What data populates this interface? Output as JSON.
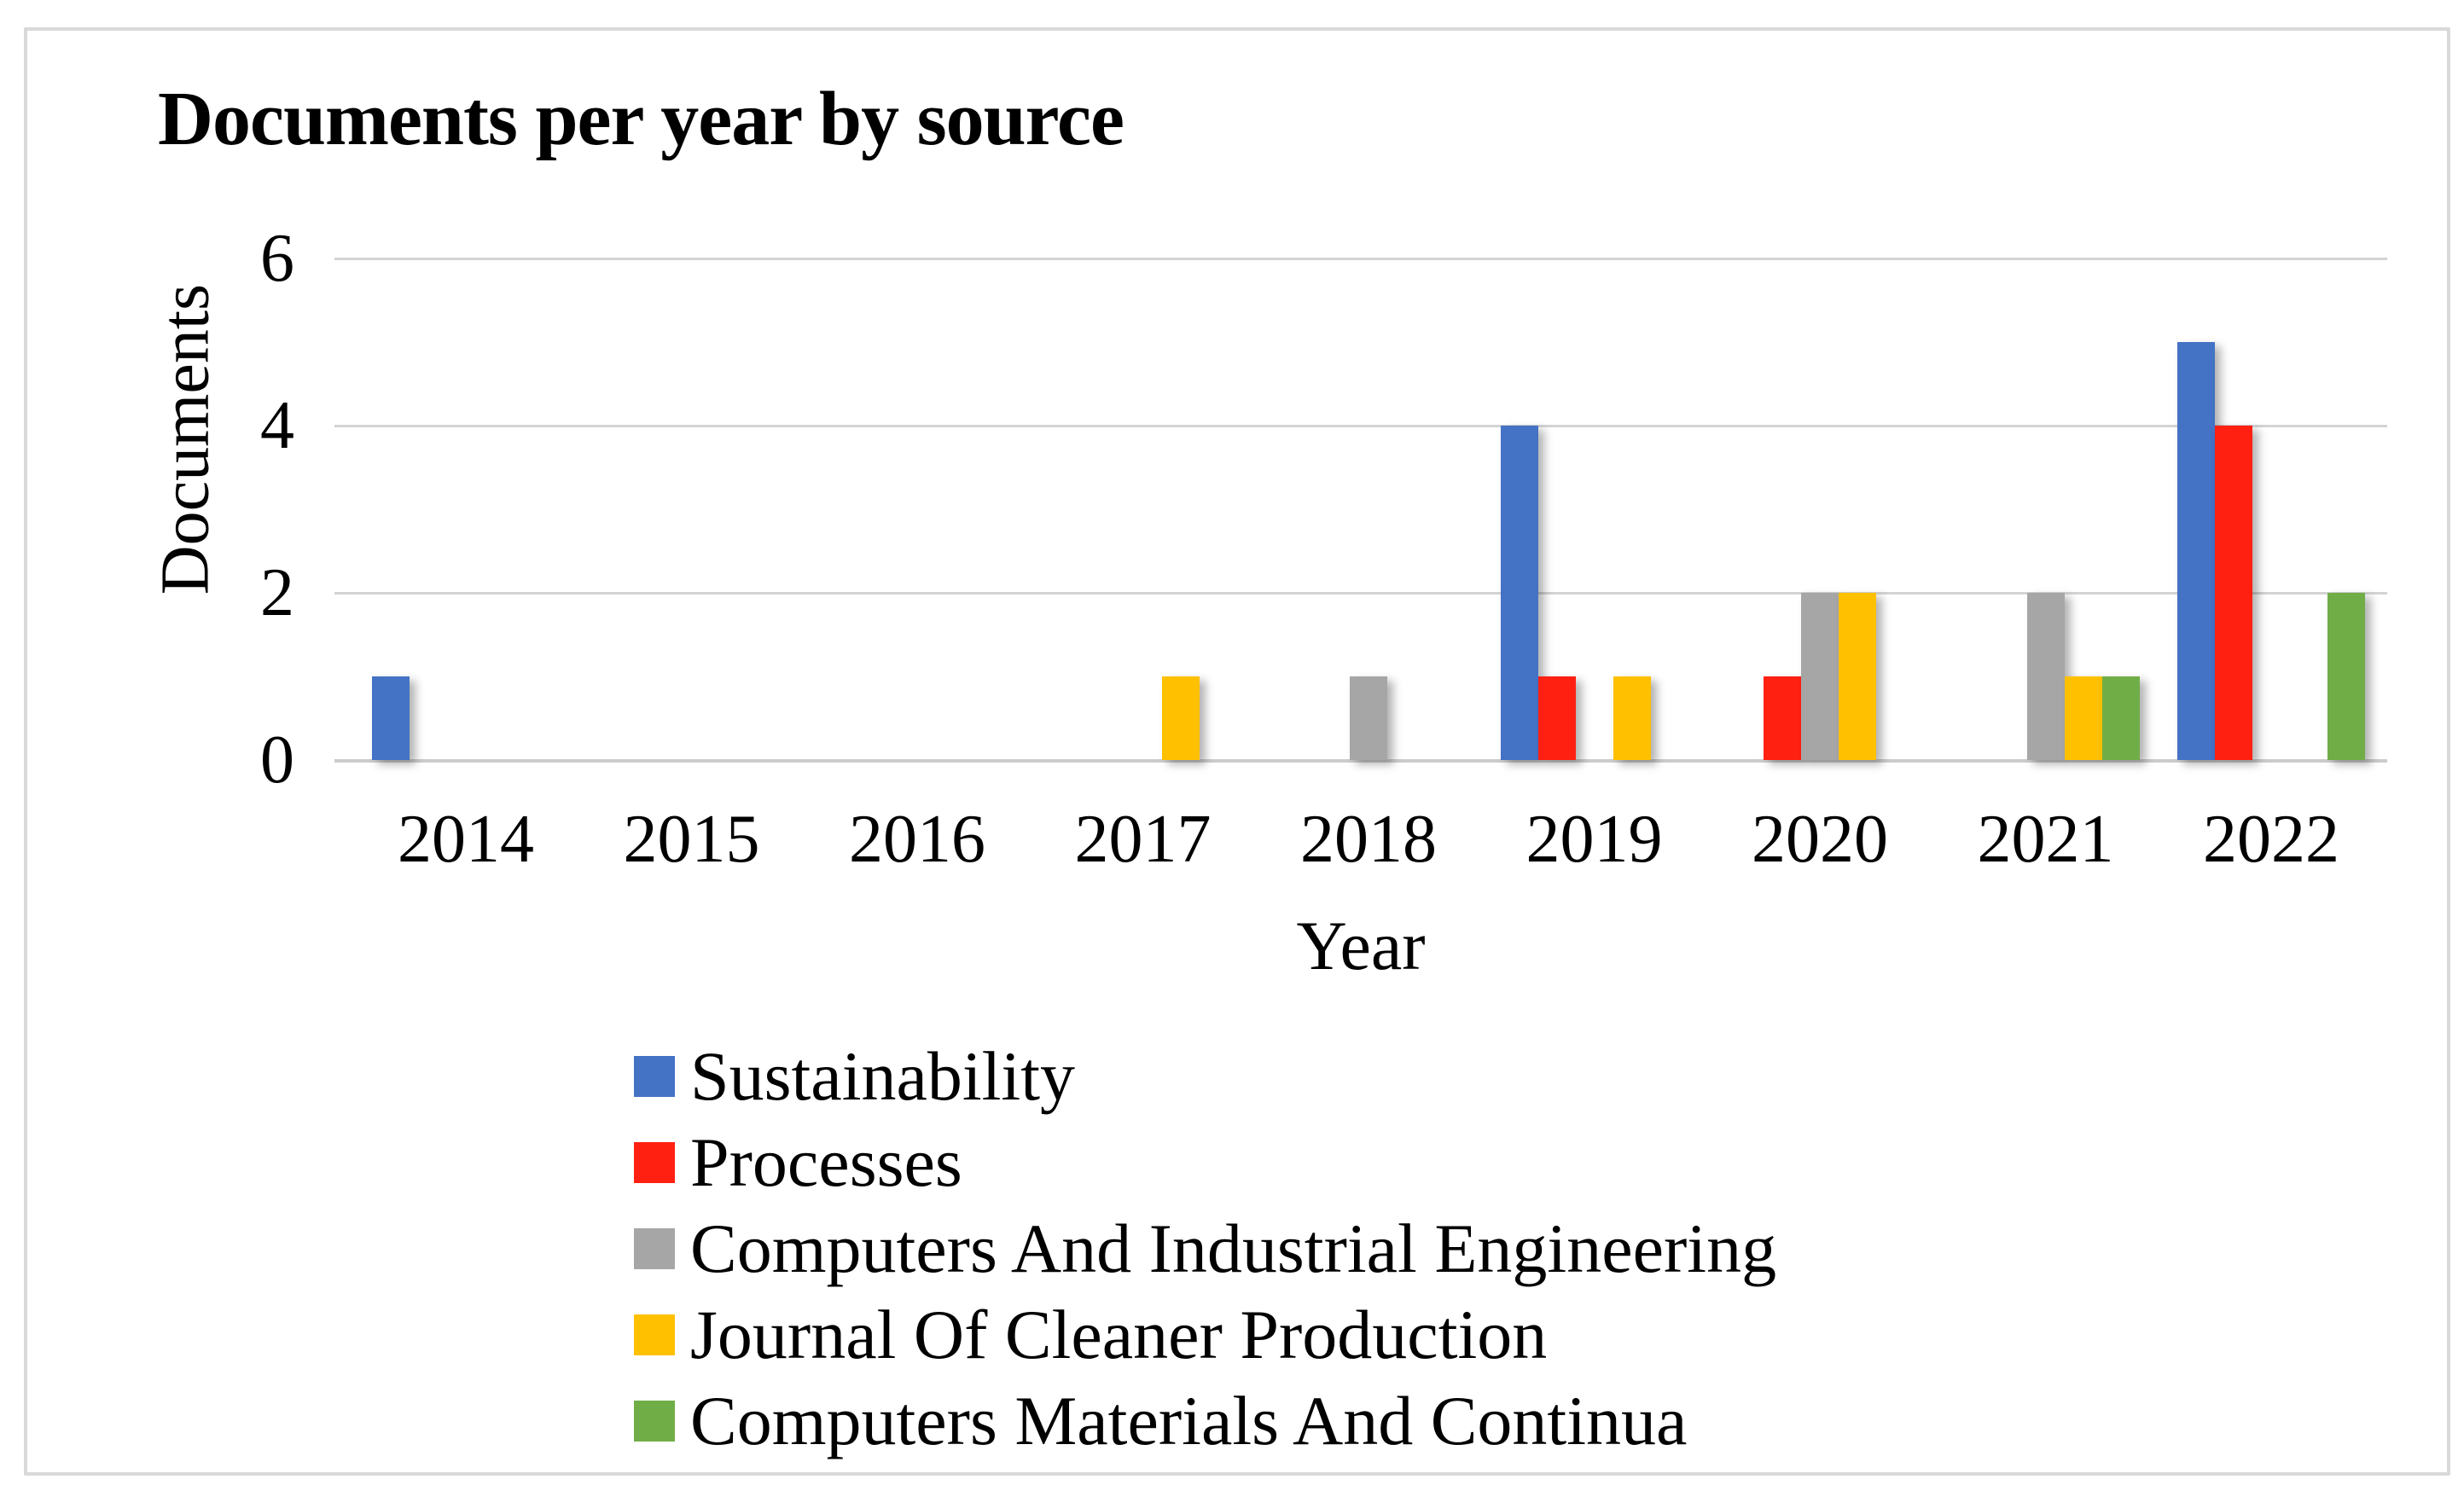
{
  "figure": {
    "background": "#FFFFFF",
    "border_color": "#D9D9D9",
    "gridline_color": "#D4D4D4"
  },
  "chart_data": {
    "type": "bar",
    "title": "Documents per year by source",
    "xlabel": "Year",
    "ylabel": "Documents",
    "ylim": [
      0,
      6
    ],
    "yticks": [
      0,
      2,
      4,
      6
    ],
    "grid": true,
    "legend_position": "bottom-left",
    "categories": [
      "2014",
      "2015",
      "2016",
      "2017",
      "2018",
      "2019",
      "2020",
      "2021",
      "2022"
    ],
    "series": [
      {
        "name": "Sustainability",
        "color": "#4472C4",
        "values": [
          1,
          0,
          0,
          0,
          0,
          4,
          0,
          0,
          5
        ]
      },
      {
        "name": "Processes",
        "color": "#FF2012",
        "values": [
          0,
          0,
          0,
          0,
          0,
          1,
          1,
          0,
          4
        ]
      },
      {
        "name": "Computers And Industrial Engineering",
        "color": "#A6A6A6",
        "values": [
          0,
          0,
          0,
          0,
          1,
          0,
          2,
          2,
          0
        ]
      },
      {
        "name": "Journal Of Cleaner Production",
        "color": "#FFC000",
        "values": [
          0,
          0,
          0,
          1,
          0,
          1,
          2,
          1,
          0
        ]
      },
      {
        "name": "Computers Materials And Continua",
        "color": "#70AD47",
        "values": [
          0,
          0,
          0,
          0,
          0,
          0,
          0,
          1,
          2
        ]
      }
    ]
  }
}
